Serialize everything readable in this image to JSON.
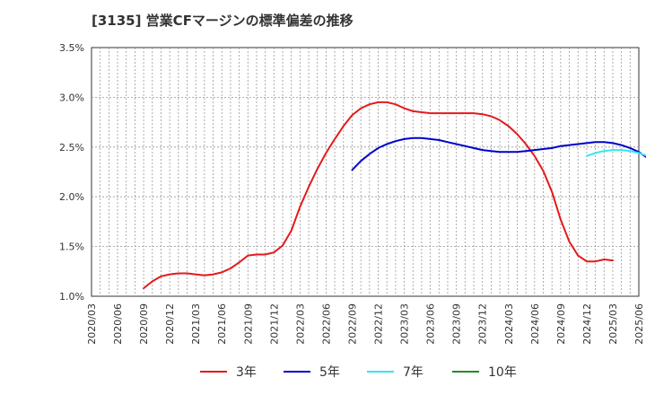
{
  "chart_data": {
    "type": "line",
    "title": "[3135]  営業CFマージンの標準偏差の推移",
    "xlabel": "",
    "ylabel": "",
    "ylim": [
      1.0,
      3.5
    ],
    "y_ticks": [
      "1.0%",
      "1.5%",
      "2.0%",
      "2.5%",
      "3.0%",
      "3.5%"
    ],
    "y_tick_values": [
      1.0,
      1.5,
      2.0,
      2.5,
      3.0,
      3.5
    ],
    "x_ticks": [
      "2020/03",
      "2020/06",
      "2020/09",
      "2020/12",
      "2021/03",
      "2021/06",
      "2021/09",
      "2021/12",
      "2022/03",
      "2022/06",
      "2022/09",
      "2022/12",
      "2023/03",
      "2023/06",
      "2023/09",
      "2023/12",
      "2024/03",
      "2024/06",
      "2024/09",
      "2024/12",
      "2025/03",
      "2025/06"
    ],
    "grid": true,
    "legend_position": "bottom",
    "series": [
      {
        "name": "3年",
        "color": "#e31a1c",
        "start_index": 6,
        "values": [
          1.08,
          1.15,
          1.2,
          1.22,
          1.23,
          1.23,
          1.22,
          1.21,
          1.22,
          1.24,
          1.28,
          1.34,
          1.41,
          1.42,
          1.42,
          1.44,
          1.51,
          1.66,
          1.9,
          2.1,
          2.28,
          2.44,
          2.58,
          2.71,
          2.82,
          2.89,
          2.93,
          2.95,
          2.95,
          2.93,
          2.89,
          2.86,
          2.85,
          2.84,
          2.84,
          2.84,
          2.84,
          2.84,
          2.84,
          2.83,
          2.81,
          2.77,
          2.71,
          2.63,
          2.53,
          2.41,
          2.26,
          2.05,
          1.77,
          1.55,
          1.41,
          1.35,
          1.35,
          1.37,
          1.36
        ]
      },
      {
        "name": "5年",
        "color": "#0000cc",
        "start_index": 30,
        "values": [
          2.27,
          2.36,
          2.43,
          2.49,
          2.53,
          2.56,
          2.58,
          2.59,
          2.59,
          2.58,
          2.57,
          2.55,
          2.53,
          2.51,
          2.49,
          2.47,
          2.46,
          2.45,
          2.45,
          2.45,
          2.46,
          2.47,
          2.48,
          2.49,
          2.51,
          2.52,
          2.53,
          2.54,
          2.55,
          2.55,
          2.54,
          2.52,
          2.49,
          2.45,
          2.39
        ]
      },
      {
        "name": "7年",
        "color": "#33e6f0",
        "start_index": 57,
        "values": [
          2.41,
          2.44,
          2.46,
          2.47,
          2.47,
          2.46,
          2.44,
          2.41
        ]
      },
      {
        "name": "10年",
        "color": "#228b22",
        "start_index": 0,
        "values": []
      }
    ]
  }
}
